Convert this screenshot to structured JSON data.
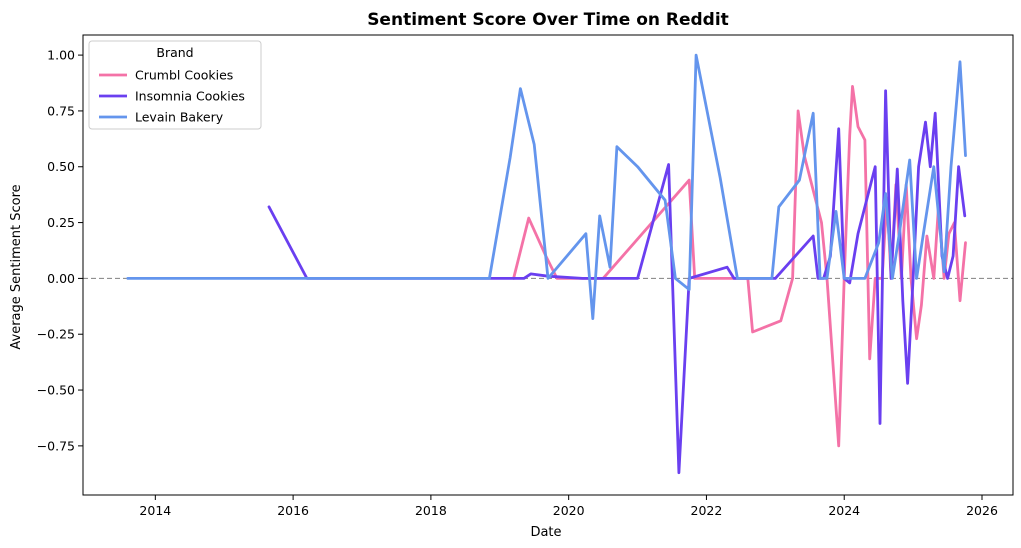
{
  "chart_data": {
    "type": "line",
    "title": "Sentiment Score Over Time on Reddit",
    "xlabel": "Date",
    "ylabel": "Average Sentiment Score",
    "x_unit": "year",
    "xlim": [
      2012.95,
      2026.45
    ],
    "ylim": [
      -0.97,
      1.09
    ],
    "x_ticks": [
      2014,
      2016,
      2018,
      2020,
      2022,
      2024,
      2026
    ],
    "x_tick_labels": [
      "2014",
      "2016",
      "2018",
      "2020",
      "2022",
      "2024",
      "2026"
    ],
    "y_ticks": [
      -0.75,
      -0.5,
      -0.25,
      0.0,
      0.25,
      0.5,
      0.75,
      1.0
    ],
    "y_tick_labels": [
      "−0.75",
      "−0.50",
      "−0.25",
      "0.00",
      "0.25",
      "0.50",
      "0.75",
      "1.00"
    ],
    "reference_line": {
      "y": 0,
      "style": "dashed",
      "color": "#808080"
    },
    "grid": false,
    "legend": {
      "title": "Brand",
      "placement": "top-left"
    },
    "series": [
      {
        "name": "Crumbl Cookies",
        "color": "#f472a7",
        "points": [
          [
            2019.2,
            0.0
          ],
          [
            2019.42,
            0.27
          ],
          [
            2019.67,
            0.1
          ],
          [
            2019.83,
            0.0
          ],
          [
            2020.5,
            0.0
          ],
          [
            2021.75,
            0.44
          ],
          [
            2021.83,
            0.0
          ],
          [
            2022.6,
            0.0
          ],
          [
            2022.67,
            -0.24
          ],
          [
            2023.08,
            -0.19
          ],
          [
            2023.25,
            0.0
          ],
          [
            2023.33,
            0.75
          ],
          [
            2023.42,
            0.55
          ],
          [
            2023.67,
            0.25
          ],
          [
            2023.75,
            0.0
          ],
          [
            2023.92,
            -0.75
          ],
          [
            2024.0,
            0.0
          ],
          [
            2024.08,
            0.64
          ],
          [
            2024.12,
            0.86
          ],
          [
            2024.2,
            0.68
          ],
          [
            2024.3,
            0.62
          ],
          [
            2024.37,
            -0.36
          ],
          [
            2024.45,
            0.0
          ],
          [
            2024.55,
            0.0
          ],
          [
            2024.62,
            0.36
          ],
          [
            2024.68,
            0.0
          ],
          [
            2024.75,
            0.42
          ],
          [
            2024.83,
            0.0
          ],
          [
            2024.9,
            0.42
          ],
          [
            2024.97,
            0.0
          ],
          [
            2025.05,
            -0.27
          ],
          [
            2025.12,
            -0.12
          ],
          [
            2025.2,
            0.19
          ],
          [
            2025.3,
            0.0
          ],
          [
            2025.37,
            0.33
          ],
          [
            2025.45,
            0.0
          ],
          [
            2025.52,
            0.2
          ],
          [
            2025.6,
            0.25
          ],
          [
            2025.68,
            -0.1
          ],
          [
            2025.76,
            0.16
          ]
        ]
      },
      {
        "name": "Insomnia Cookies",
        "color": "#6a3ff0",
        "points": [
          [
            2015.65,
            0.32
          ],
          [
            2016.2,
            0.0
          ],
          [
            2019.35,
            0.0
          ],
          [
            2019.45,
            0.02
          ],
          [
            2019.7,
            0.01
          ],
          [
            2020.2,
            0.0
          ],
          [
            2021.0,
            0.0
          ],
          [
            2021.45,
            0.51
          ],
          [
            2021.6,
            -0.87
          ],
          [
            2021.75,
            0.0
          ],
          [
            2022.3,
            0.05
          ],
          [
            2022.4,
            0.0
          ],
          [
            2023.0,
            0.0
          ],
          [
            2023.55,
            0.19
          ],
          [
            2023.62,
            0.0
          ],
          [
            2023.7,
            0.0
          ],
          [
            2023.8,
            0.1
          ],
          [
            2023.92,
            0.67
          ],
          [
            2024.0,
            0.0
          ],
          [
            2024.08,
            -0.02
          ],
          [
            2024.2,
            0.2
          ],
          [
            2024.45,
            0.5
          ],
          [
            2024.52,
            -0.65
          ],
          [
            2024.6,
            0.84
          ],
          [
            2024.68,
            0.0
          ],
          [
            2024.77,
            0.49
          ],
          [
            2024.85,
            -0.1
          ],
          [
            2024.92,
            -0.47
          ],
          [
            2025.0,
            0.0
          ],
          [
            2025.08,
            0.5
          ],
          [
            2025.18,
            0.7
          ],
          [
            2025.25,
            0.5
          ],
          [
            2025.32,
            0.74
          ],
          [
            2025.42,
            0.1
          ],
          [
            2025.5,
            0.0
          ],
          [
            2025.58,
            0.1
          ],
          [
            2025.66,
            0.5
          ],
          [
            2025.75,
            0.28
          ]
        ]
      },
      {
        "name": "Levain Bakery",
        "color": "#6495ed",
        "points": [
          [
            2013.6,
            0.0
          ],
          [
            2018.85,
            0.0
          ],
          [
            2019.15,
            0.54
          ],
          [
            2019.3,
            0.85
          ],
          [
            2019.5,
            0.6
          ],
          [
            2019.7,
            0.0
          ],
          [
            2020.25,
            0.2
          ],
          [
            2020.35,
            -0.18
          ],
          [
            2020.45,
            0.28
          ],
          [
            2020.6,
            0.05
          ],
          [
            2020.7,
            0.59
          ],
          [
            2021.0,
            0.5
          ],
          [
            2021.4,
            0.35
          ],
          [
            2021.55,
            0.0
          ],
          [
            2021.75,
            -0.05
          ],
          [
            2021.85,
            1.0
          ],
          [
            2022.2,
            0.45
          ],
          [
            2022.45,
            0.0
          ],
          [
            2022.95,
            0.0
          ],
          [
            2023.05,
            0.32
          ],
          [
            2023.35,
            0.44
          ],
          [
            2023.55,
            0.74
          ],
          [
            2023.65,
            0.0
          ],
          [
            2023.75,
            0.0
          ],
          [
            2023.88,
            0.3
          ],
          [
            2024.0,
            0.0
          ],
          [
            2024.3,
            0.0
          ],
          [
            2024.5,
            0.16
          ],
          [
            2024.6,
            0.38
          ],
          [
            2024.7,
            0.0
          ],
          [
            2024.8,
            0.2
          ],
          [
            2024.95,
            0.53
          ],
          [
            2025.05,
            0.0
          ],
          [
            2025.15,
            0.2
          ],
          [
            2025.3,
            0.5
          ],
          [
            2025.45,
            0.03
          ],
          [
            2025.55,
            0.5
          ],
          [
            2025.68,
            0.97
          ],
          [
            2025.76,
            0.55
          ]
        ]
      }
    ]
  }
}
